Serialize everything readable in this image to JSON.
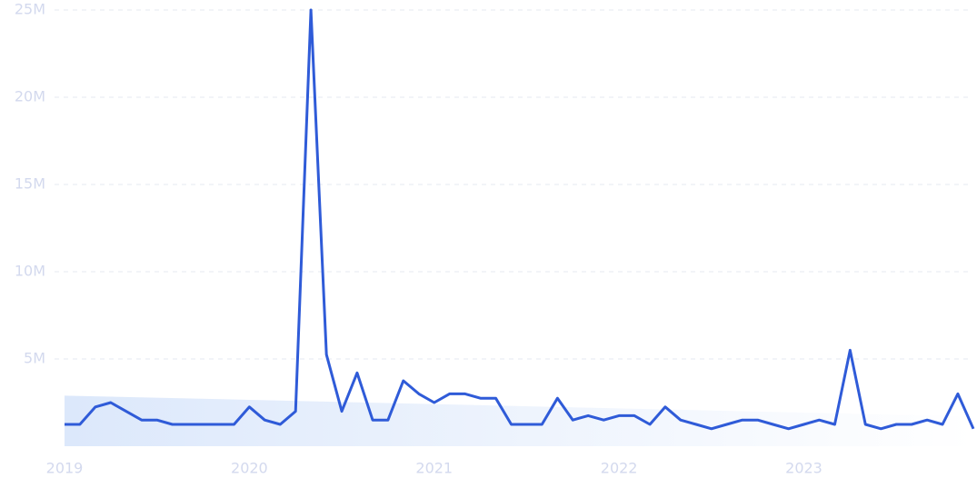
{
  "chart_data": {
    "type": "line",
    "x": [
      2019,
      2019.083,
      2019.167,
      2019.25,
      2019.333,
      2019.417,
      2019.5,
      2019.583,
      2019.667,
      2019.75,
      2019.833,
      2019.917,
      2020,
      2020.083,
      2020.167,
      2020.25,
      2020.333,
      2020.417,
      2020.5,
      2020.583,
      2020.667,
      2020.75,
      2020.833,
      2020.917,
      2021,
      2021.083,
      2021.167,
      2021.25,
      2021.333,
      2021.417,
      2021.5,
      2021.583,
      2021.667,
      2021.75,
      2021.833,
      2021.917,
      2022,
      2022.083,
      2022.167,
      2022.25,
      2022.333,
      2022.417,
      2022.5,
      2022.583,
      2022.667,
      2022.75,
      2022.833,
      2022.917,
      2023,
      2023.083,
      2023.167,
      2023.25,
      2023.333,
      2023.417,
      2023.5,
      2023.583,
      2023.667,
      2023.75,
      2023.833,
      2023.917
    ],
    "series": [
      {
        "color": "#2f5bd8",
        "values": [
          1250000,
          1250000,
          2250000,
          2500000,
          2000000,
          1500000,
          1500000,
          1250000,
          1250000,
          1250000,
          1250000,
          1250000,
          2250000,
          1500000,
          1250000,
          2000000,
          25000000,
          5250000,
          2000000,
          4200000,
          1500000,
          1500000,
          3750000,
          3000000,
          2500000,
          3000000,
          3000000,
          2750000,
          2750000,
          1250000,
          1250000,
          1250000,
          2750000,
          1500000,
          1750000,
          1500000,
          1750000,
          1750000,
          1250000,
          2250000,
          1500000,
          1250000,
          1000000,
          1250000,
          1500000,
          1500000,
          1250000,
          1000000,
          1250000,
          1500000,
          1250000,
          5500000,
          1250000,
          1000000,
          1250000,
          1250000,
          1500000,
          1250000,
          3000000,
          1000000
        ]
      }
    ],
    "band": {
      "color": "#dce8fb",
      "x": [
        2019,
        2023.917
      ],
      "values": [
        2900000,
        1700000
      ]
    },
    "xlim": [
      2019,
      2023.917
    ],
    "xticks": [
      2019,
      2020,
      2021,
      2022,
      2023
    ],
    "ylim": [
      0,
      25000000
    ],
    "yticks": [
      {
        "value": 5000000,
        "label": "5M"
      },
      {
        "value": 10000000,
        "label": "10M"
      },
      {
        "value": 15000000,
        "label": "15M"
      },
      {
        "value": 20000000,
        "label": "20M"
      },
      {
        "value": 25000000,
        "label": "25M"
      }
    ],
    "grid": true
  }
}
